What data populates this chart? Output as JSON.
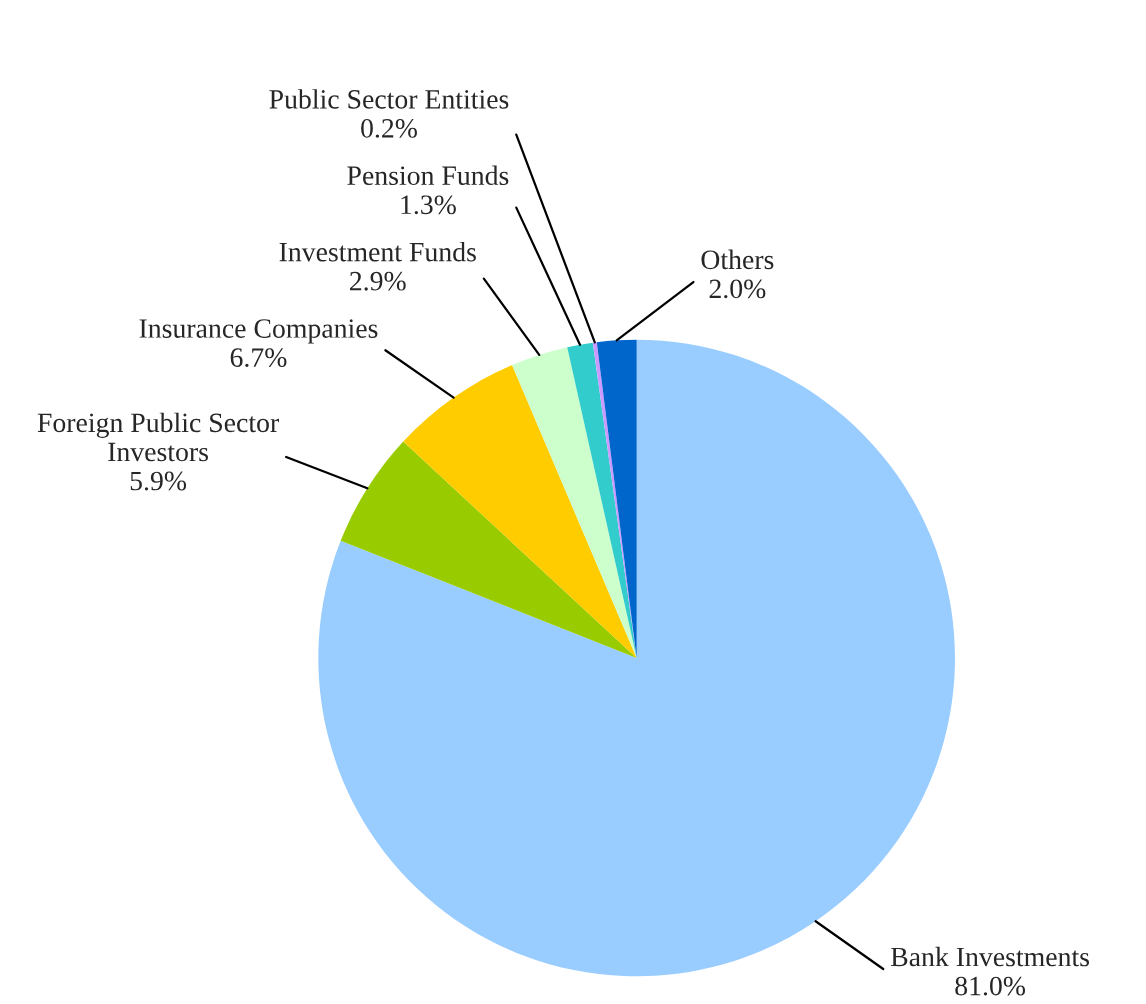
{
  "chart_data": {
    "type": "pie",
    "categories": [
      "Bank Investments",
      "Foreign Public Sector Investors",
      "Insurance Companies",
      "Investment Funds",
      "Pension Funds",
      "Public Sector Entities",
      "Others"
    ],
    "values": [
      81.0,
      5.9,
      6.7,
      2.9,
      1.3,
      0.2,
      2.0
    ],
    "value_labels": [
      "81.0%",
      "5.9%",
      "6.7%",
      "2.9%",
      "1.3%",
      "0.2%",
      "2.0%"
    ],
    "colors": [
      "#99ccff",
      "#99cc00",
      "#ffcc00",
      "#ccffcc",
      "#33cccc",
      "#cc99ff",
      "#0066cc"
    ],
    "legend": false
  }
}
